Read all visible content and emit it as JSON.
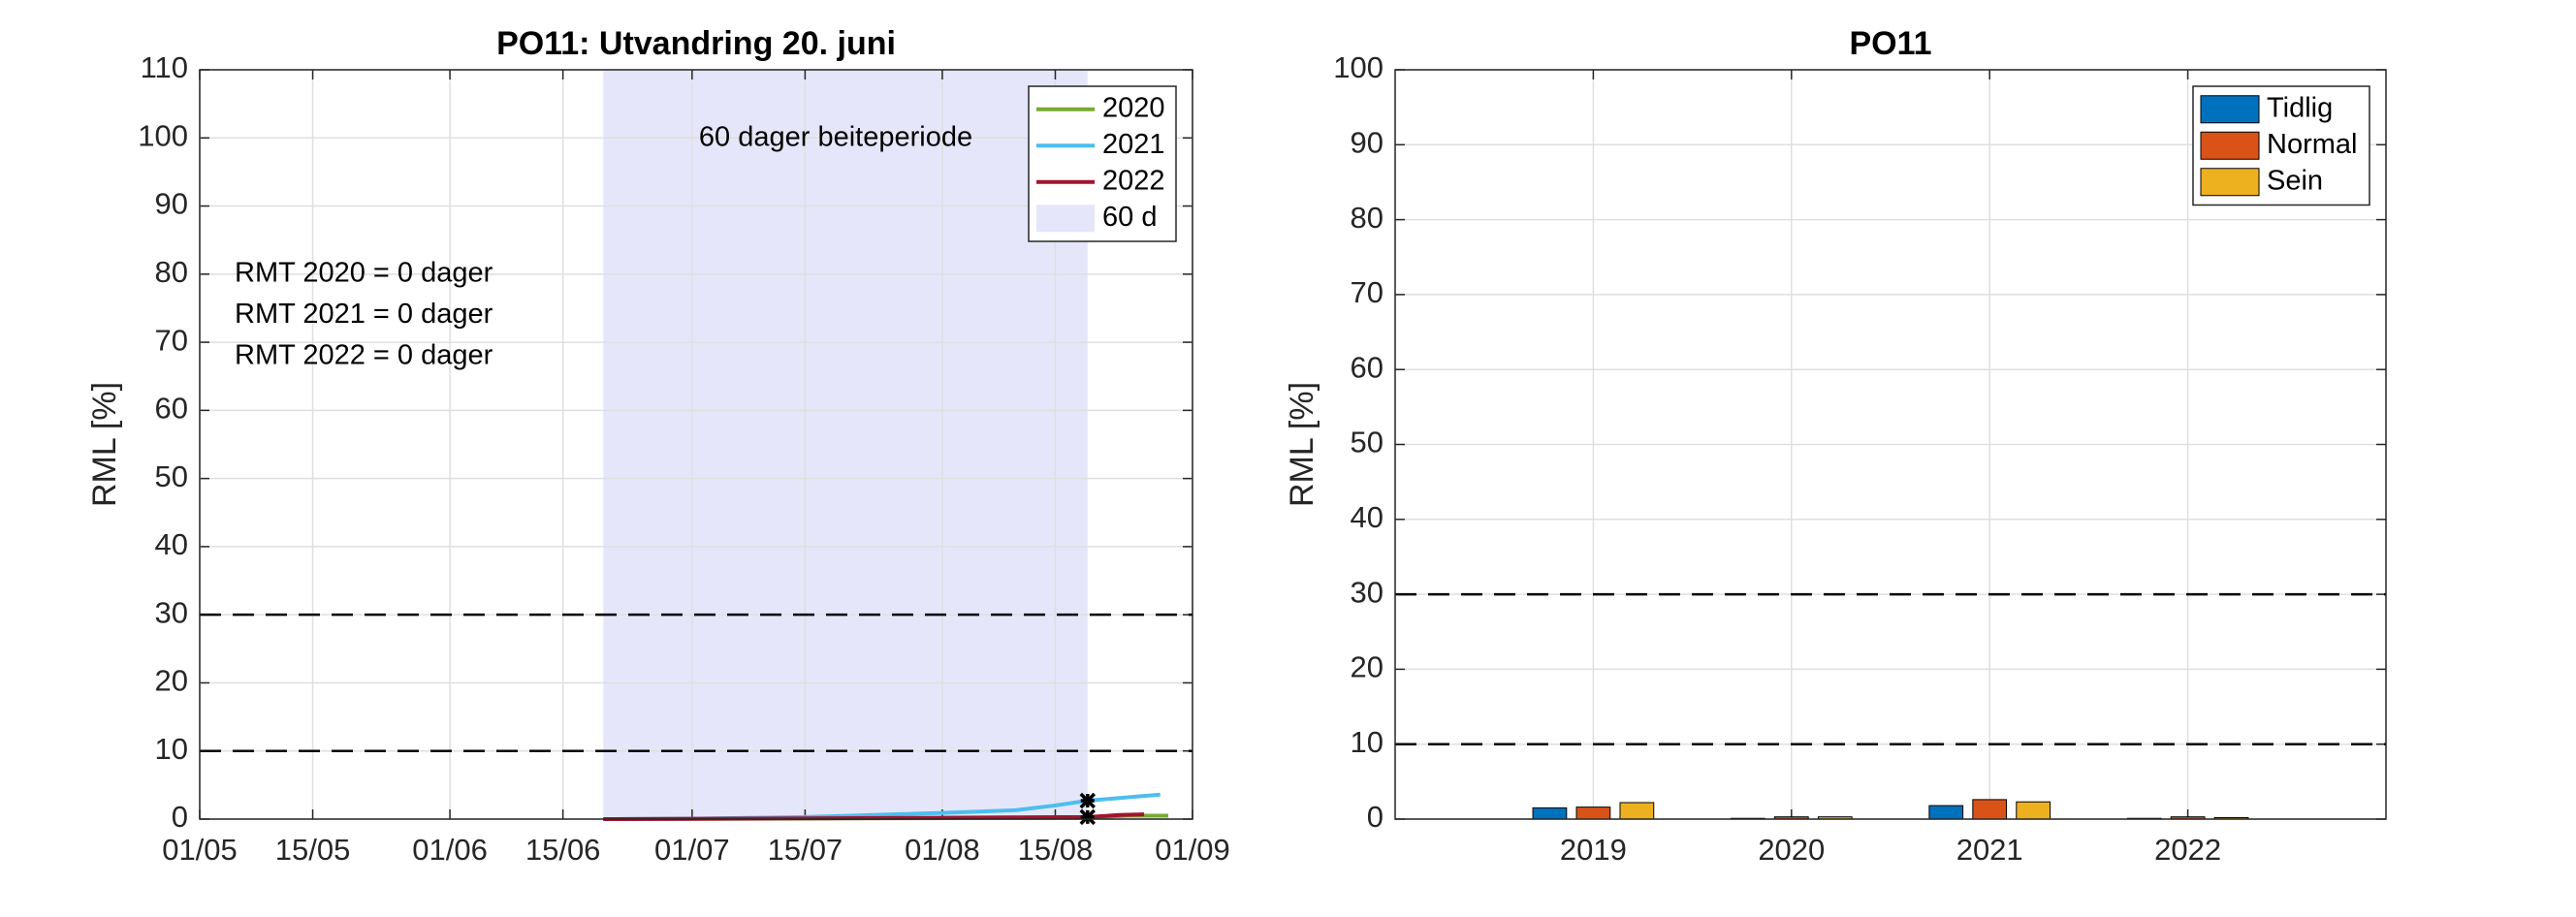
{
  "chart_data": [
    {
      "type": "line",
      "title": "PO11: Utvandring 20. juni",
      "ylabel": "RML [%]",
      "xlim": [
        "01/05",
        "01/09"
      ],
      "xticks": [
        "01/05",
        "15/05",
        "01/06",
        "15/06",
        "01/07",
        "15/07",
        "01/08",
        "15/08",
        "01/09"
      ],
      "ylim": [
        0,
        110
      ],
      "yticks": [
        0,
        10,
        20,
        30,
        40,
        50,
        60,
        70,
        80,
        90,
        100,
        110
      ],
      "grid": true,
      "hlines": [
        10,
        30
      ],
      "span": {
        "name": "60 d",
        "start": "20/06",
        "end": "19/08",
        "color": "#e6e6fa"
      },
      "annotations": [
        "60 dager beiteperiode",
        "RMT 2020 = 0 dager",
        "RMT 2021 = 0 dager",
        "RMT 2022 = 0 dager"
      ],
      "legend": "upper right",
      "series": [
        {
          "name": "2020",
          "color": "#77ac30",
          "x": [
            "20/06",
            "19/08",
            "24/08",
            "29/08"
          ],
          "values": [
            0,
            0.2,
            0.5,
            0.5
          ]
        },
        {
          "name": "2021",
          "color": "#4dbeee",
          "x": [
            "20/06",
            "01/07",
            "15/07",
            "01/08",
            "10/08",
            "15/08",
            "19/08",
            "24/08",
            "28/08"
          ],
          "values": [
            0,
            0.05,
            0.3,
            0.9,
            1.3,
            2.0,
            2.7,
            3.2,
            3.6
          ]
        },
        {
          "name": "2022",
          "color": "#a2142f",
          "x": [
            "20/06",
            "15/07",
            "01/08",
            "19/08",
            "23/08",
            "26/08"
          ],
          "values": [
            0,
            0.1,
            0.2,
            0.3,
            0.6,
            0.7
          ]
        }
      ],
      "markers": {
        "x": [
          "19/08",
          "19/08"
        ],
        "values": [
          2.7,
          0.3
        ]
      }
    },
    {
      "type": "bar",
      "title": "PO11",
      "ylabel": "RML [%]",
      "x": [
        2019,
        2020,
        2021,
        2022
      ],
      "xlim": [
        2018,
        2023
      ],
      "xticks": [
        2019,
        2020,
        2021,
        2022
      ],
      "ylim": [
        0,
        100
      ],
      "yticks": [
        0,
        10,
        20,
        30,
        40,
        50,
        60,
        70,
        80,
        90,
        100
      ],
      "grid": true,
      "hlines": [
        10,
        30
      ],
      "legend": "upper right",
      "series": [
        {
          "name": "Tidlig",
          "color": "#0072bd",
          "values": [
            1.5,
            0.1,
            1.8,
            0.1
          ]
        },
        {
          "name": "Normal",
          "color": "#d95319",
          "values": [
            1.6,
            0.3,
            2.6,
            0.3
          ]
        },
        {
          "name": "Sein",
          "color": "#edb120",
          "values": [
            2.2,
            0.3,
            2.3,
            0.2
          ]
        }
      ]
    }
  ]
}
